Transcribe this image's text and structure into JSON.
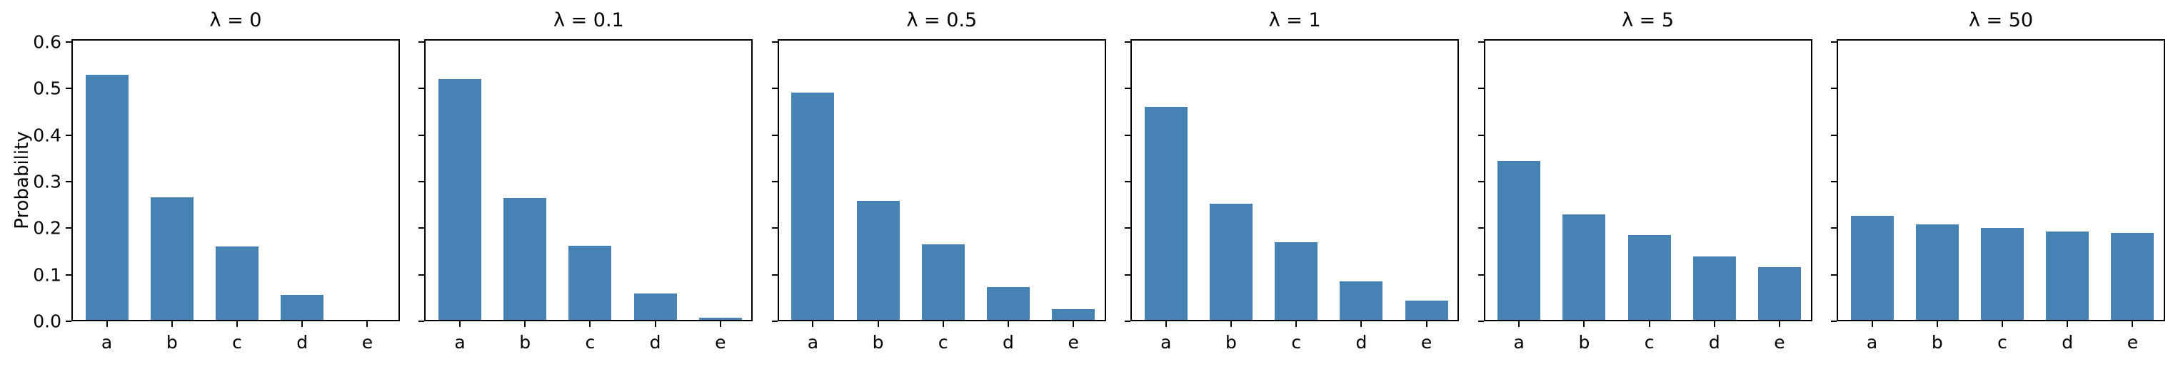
{
  "chart_data": {
    "type": "bar",
    "categories": [
      "a",
      "b",
      "c",
      "d",
      "e"
    ],
    "ylabel": "Probability",
    "ylim": [
      0.0,
      0.6
    ],
    "yticks": [
      0.0,
      0.1,
      0.2,
      0.3,
      0.4,
      0.5,
      0.6
    ],
    "ytick_labels": [
      "0.0",
      "0.1",
      "0.2",
      "0.3",
      "0.4",
      "0.5",
      "0.6"
    ],
    "grid": false,
    "legend": "none",
    "bar_color": "#4682b4",
    "axis_color": "#000000",
    "panels": [
      {
        "title": "λ = 0",
        "values": [
          0.526,
          0.263,
          0.158,
          0.053,
          0.0
        ]
      },
      {
        "title": "λ = 0.1",
        "values": [
          0.518,
          0.262,
          0.159,
          0.056,
          0.005
        ]
      },
      {
        "title": "λ = 0.5",
        "values": [
          0.488,
          0.256,
          0.163,
          0.07,
          0.023
        ]
      },
      {
        "title": "λ = 1",
        "values": [
          0.458,
          0.25,
          0.167,
          0.083,
          0.042
        ]
      },
      {
        "title": "λ = 5",
        "values": [
          0.341,
          0.227,
          0.182,
          0.136,
          0.114
        ]
      },
      {
        "title": "λ = 50",
        "values": [
          0.223,
          0.205,
          0.197,
          0.19,
          0.186
        ]
      }
    ]
  }
}
